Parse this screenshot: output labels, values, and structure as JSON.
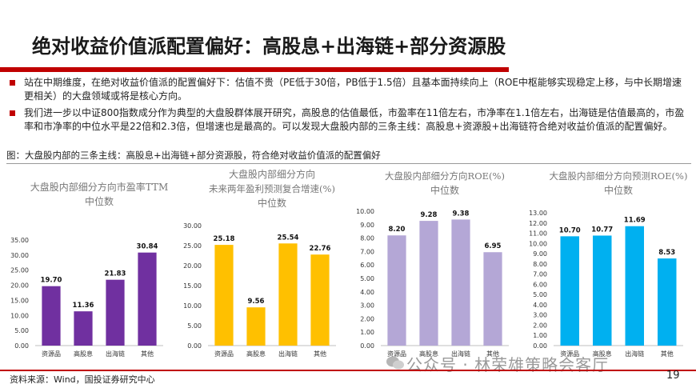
{
  "slide": {
    "title": "绝对收益价值派配置偏好：高股息+出海链+部分资源股",
    "bullets": [
      "站在中期维度，在绝对收益价值派的配置偏好下：估值不贵（PE低于30倍，PB低于1.5倍）且基本面持续向上（ROE中枢能够实现稳定上移，与中长期增速更相关）的大盘领域或将是核心方向。",
      "我们进一步以中证800指数成分作为典型的大盘股群体展开研究，高股息的估值最低，市盈率在11倍左右，市净率在1.1倍左右，出海链是估值最高的，市盈率和市净率的中位水平是22倍和2.3倍，但增速也是最高的。可以发现大盘股内部的三条主线：高股息+资源股+出海链符合绝对收益价值派的配置偏好。"
    ],
    "figure_caption": "图：大盘股内部的三条主线：高股息+出海链+部分资源股，符合绝对收益价值派的配置偏好",
    "source": "资料来源：Wind，国投证券研究中心",
    "watermark": "公众号 · 林荣雄策略会客厅",
    "page_number": "19"
  },
  "chart_data": [
    {
      "type": "bar",
      "title_lines": [
        "大盘股内部细分方向市盈率TTM",
        "中位数"
      ],
      "categories": [
        "资源品",
        "高股息",
        "出海链",
        "其他"
      ],
      "values": [
        19.7,
        11.36,
        21.83,
        30.84
      ],
      "value_labels": [
        "19.70",
        "11.36",
        "21.83",
        "30.84"
      ],
      "ylim": [
        0,
        35
      ],
      "yticks": [
        "0.00",
        "5.00",
        "10.00",
        "15.00",
        "20.00",
        "25.00",
        "30.00",
        "35.00"
      ],
      "color": "#7030a0"
    },
    {
      "type": "bar",
      "title_lines": [
        "大盘股内部细分方向",
        "未来两年盈利预测复合增速(%)",
        "中位数"
      ],
      "categories": [
        "资源品",
        "高股息",
        "出海链",
        "其他"
      ],
      "values": [
        25.18,
        9.56,
        25.54,
        22.76
      ],
      "value_labels": [
        "25.18",
        "9.56",
        "25.54",
        "22.76"
      ],
      "ylim": [
        0,
        30
      ],
      "yticks": [
        "0.00",
        "5.00",
        "10.00",
        "15.00",
        "20.00",
        "25.00",
        "30.00"
      ],
      "color": "#ffc000"
    },
    {
      "type": "bar",
      "title_lines": [
        "大盘股内部细分方向ROE(%)",
        "中位数"
      ],
      "categories": [
        "资源品",
        "高股息",
        "出海链",
        "其他"
      ],
      "values": [
        8.2,
        9.28,
        9.38,
        6.95
      ],
      "value_labels": [
        "8.20",
        "9.28",
        "9.38",
        "6.95"
      ],
      "ylim": [
        0,
        10
      ],
      "yticks": [
        "0.00",
        "1.00",
        "2.00",
        "3.00",
        "4.00",
        "5.00",
        "6.00",
        "7.00",
        "8.00",
        "9.00",
        "10.00"
      ],
      "color": "#b4a7d6"
    },
    {
      "type": "bar",
      "title_lines": [
        "大盘股内部细分方向预测ROE(%)",
        "中位数"
      ],
      "categories": [
        "资源品",
        "高股息",
        "出海链",
        "其他"
      ],
      "values": [
        10.7,
        10.77,
        11.69,
        8.53
      ],
      "value_labels": [
        "10.70",
        "10.77",
        "11.69",
        "8.53"
      ],
      "ylim": [
        0,
        13
      ],
      "yticks": [
        "0.00",
        "1.00",
        "2.00",
        "3.00",
        "4.00",
        "5.00",
        "6.00",
        "7.00",
        "8.00",
        "9.00",
        "10.00",
        "11.00",
        "12.00",
        "13.00"
      ],
      "color": "#00b0f0"
    }
  ]
}
